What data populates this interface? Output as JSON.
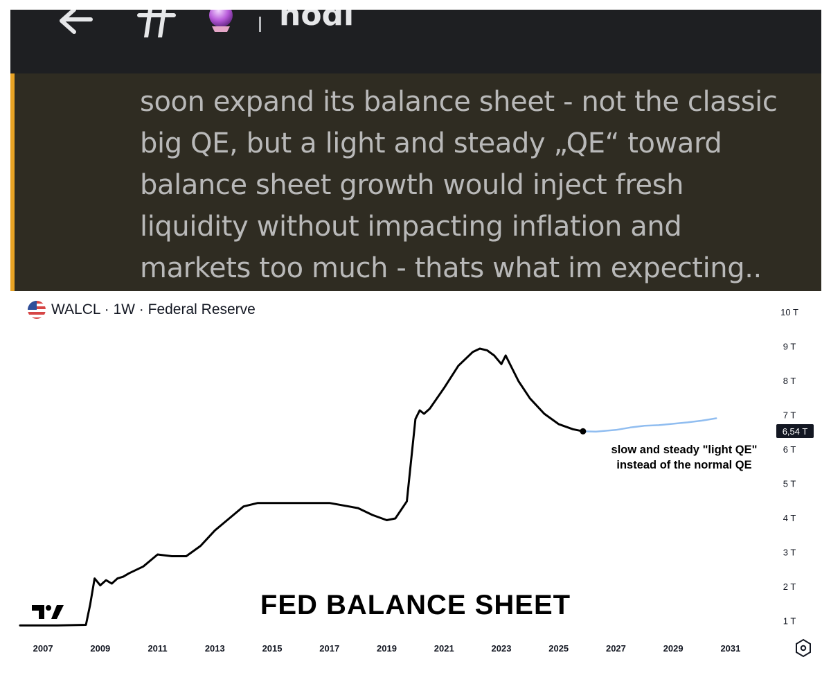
{
  "app": {
    "channel_name": "hodl",
    "icons": [
      "back-arrow-icon",
      "hash-icon",
      "crystal-ball-icon"
    ]
  },
  "quote": {
    "lines": [
      "soon expand its balance sheet - not the classic",
      "big QE, but a light and steady „QE“ toward",
      "balance sheet growth would inject fresh",
      "liquidity without impacting inflation and",
      "markets too much - thats what im expecting.."
    ],
    "accent_color": "#e8a324"
  },
  "chart_header": {
    "title": "WALCL · 1W · Federal Reserve",
    "flag_icon": "us-flag-icon"
  },
  "chart_data": {
    "type": "line",
    "title": "FED BALANCE SHEET",
    "ylim": [
      0,
      10
    ],
    "xlim": [
      2006.2,
      2031.8
    ],
    "y_ticks": [
      "10 T",
      "9 T",
      "8 T",
      "7 T",
      "6 T",
      "5 T",
      "4 T",
      "3 T",
      "2 T",
      "1 T"
    ],
    "x_ticks": [
      "2007",
      "2009",
      "2011",
      "2013",
      "2015",
      "2017",
      "2019",
      "2021",
      "2023",
      "2025",
      "2027",
      "2029",
      "2031"
    ],
    "current_value_label": "6,54 T",
    "annotation": [
      "slow and steady \"light QE\"",
      "instead of the normal QE"
    ],
    "series": [
      {
        "color": "#000000",
        "x": [
          2006.2,
          2007.5,
          2008.5,
          2008.65,
          2008.8,
          2009.0,
          2009.2,
          2009.4,
          2009.6,
          2009.8,
          2010.0,
          2010.5,
          2011.0,
          2011.5,
          2012.0,
          2012.5,
          2013.0,
          2013.5,
          2014.0,
          2014.5,
          2015.0,
          2016.0,
          2017.0,
          2018.0,
          2018.5,
          2019.0,
          2019.3,
          2019.7,
          2020.0,
          2020.15,
          2020.3,
          2020.5,
          2021.0,
          2021.5,
          2022.0,
          2022.25,
          2022.5,
          2022.75,
          2023.0,
          2023.15,
          2023.3,
          2023.6,
          2024.0,
          2024.5,
          2025.0,
          2025.5,
          2025.85
        ],
        "y": [
          0.88,
          0.88,
          0.9,
          1.5,
          2.25,
          2.05,
          2.2,
          2.1,
          2.25,
          2.3,
          2.4,
          2.6,
          2.95,
          2.9,
          2.9,
          3.2,
          3.65,
          4.0,
          4.35,
          4.45,
          4.45,
          4.45,
          4.45,
          4.3,
          4.1,
          3.95,
          4.0,
          4.5,
          6.9,
          7.15,
          7.05,
          7.2,
          7.8,
          8.45,
          8.85,
          8.95,
          8.9,
          8.75,
          8.5,
          8.75,
          8.5,
          8.0,
          7.5,
          7.05,
          6.75,
          6.6,
          6.54
        ]
      },
      {
        "color": "#90bdf0",
        "x": [
          2025.85,
          2026.3,
          2027.0,
          2027.5,
          2028.0,
          2028.5,
          2029.0,
          2029.5,
          2030.0,
          2030.5
        ],
        "y": [
          6.54,
          6.53,
          6.58,
          6.65,
          6.7,
          6.72,
          6.76,
          6.8,
          6.85,
          6.92
        ]
      }
    ]
  }
}
